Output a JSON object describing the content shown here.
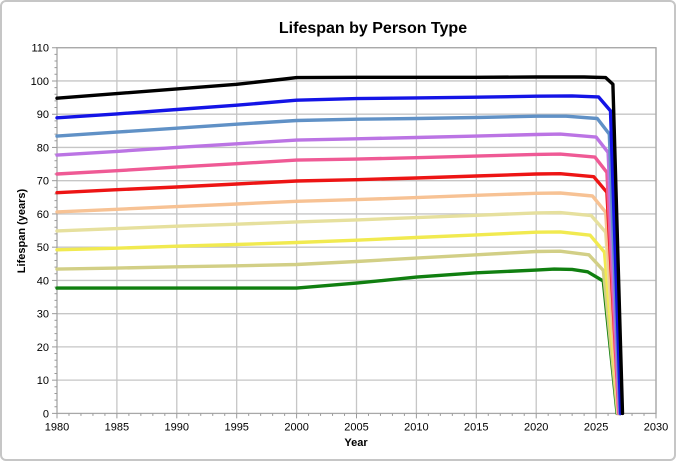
{
  "title": "Lifespan by Person Type",
  "chart_data": {
    "type": "line",
    "title": "Lifespan by Person Type",
    "xlabel": "Year",
    "ylabel": "Lifespan (years)",
    "xlim": [
      1980,
      2030
    ],
    "ylim": [
      0,
      110
    ],
    "x_tick_step": 5,
    "x_minor_tick_step": 1,
    "y_tick_step": 10,
    "y_minor_tick_step": 2,
    "x_tick_labels": [
      "1980",
      "1985",
      "1990",
      "1995",
      "2000",
      "2005",
      "2010",
      "2015",
      "2020",
      "2025",
      "2030"
    ],
    "y_tick_labels": [
      "0",
      "10",
      "20",
      "30",
      "40",
      "50",
      "60",
      "70",
      "80",
      "90",
      "100",
      "110"
    ],
    "grid": true,
    "legend_position": "none",
    "grid_color": "#c6c6c6",
    "axis_color": "#a8a8a8",
    "tick_color": "#9a9a9a",
    "line_width": 3.4,
    "series": [
      {
        "name": "black",
        "color": "#000000",
        "points": [
          [
            1980,
            94.8
          ],
          [
            1985,
            96.2
          ],
          [
            1990,
            97.6
          ],
          [
            1995,
            99.0
          ],
          [
            1999,
            100.6
          ],
          [
            2000,
            101.0
          ],
          [
            2005,
            101.1
          ],
          [
            2010,
            101.1
          ],
          [
            2015,
            101.1
          ],
          [
            2020,
            101.2
          ],
          [
            2024,
            101.2
          ],
          [
            2025.8,
            101.0
          ],
          [
            2026.4,
            99.0
          ],
          [
            2027.2,
            0
          ]
        ]
      },
      {
        "name": "blue",
        "color": "#1414e6",
        "points": [
          [
            1980,
            88.9
          ],
          [
            1985,
            90.1
          ],
          [
            1990,
            91.4
          ],
          [
            1995,
            92.7
          ],
          [
            2000,
            94.2
          ],
          [
            2005,
            94.7
          ],
          [
            2010,
            94.9
          ],
          [
            2015,
            95.1
          ],
          [
            2020,
            95.4
          ],
          [
            2023,
            95.5
          ],
          [
            2025.2,
            95.2
          ],
          [
            2026.2,
            91.0
          ],
          [
            2027.05,
            0
          ]
        ]
      },
      {
        "name": "steel-blue",
        "color": "#6091c6",
        "points": [
          [
            1980,
            83.4
          ],
          [
            1985,
            84.6
          ],
          [
            1990,
            85.8
          ],
          [
            1995,
            87.0
          ],
          [
            2000,
            88.1
          ],
          [
            2005,
            88.5
          ],
          [
            2010,
            88.7
          ],
          [
            2015,
            89.0
          ],
          [
            2020,
            89.4
          ],
          [
            2022.5,
            89.4
          ],
          [
            2025.1,
            88.7
          ],
          [
            2026.1,
            84.0
          ],
          [
            2027.0,
            0
          ]
        ]
      },
      {
        "name": "purple",
        "color": "#bb74e4",
        "points": [
          [
            1980,
            77.7
          ],
          [
            1985,
            78.8
          ],
          [
            1990,
            80.0
          ],
          [
            1995,
            81.1
          ],
          [
            2000,
            82.2
          ],
          [
            2005,
            82.6
          ],
          [
            2010,
            83.0
          ],
          [
            2015,
            83.4
          ],
          [
            2020,
            83.9
          ],
          [
            2022,
            84.0
          ],
          [
            2025.0,
            83.1
          ],
          [
            2026.0,
            78.5
          ],
          [
            2026.95,
            0
          ]
        ]
      },
      {
        "name": "pink",
        "color": "#ef5a95",
        "points": [
          [
            1980,
            72.0
          ],
          [
            1985,
            73.0
          ],
          [
            1990,
            74.1
          ],
          [
            1995,
            75.1
          ],
          [
            2000,
            76.2
          ],
          [
            2005,
            76.5
          ],
          [
            2010,
            76.9
          ],
          [
            2015,
            77.4
          ],
          [
            2020,
            77.9
          ],
          [
            2022,
            78.0
          ],
          [
            2024.9,
            77.1
          ],
          [
            2025.9,
            72.5
          ],
          [
            2026.9,
            0
          ]
        ]
      },
      {
        "name": "red",
        "color": "#ed1414",
        "points": [
          [
            1980,
            66.4
          ],
          [
            1985,
            67.3
          ],
          [
            1990,
            68.1
          ],
          [
            1995,
            69.0
          ],
          [
            2000,
            69.9
          ],
          [
            2005,
            70.3
          ],
          [
            2010,
            70.8
          ],
          [
            2015,
            71.4
          ],
          [
            2020,
            72.0
          ],
          [
            2022,
            72.1
          ],
          [
            2024.8,
            71.2
          ],
          [
            2025.9,
            66.5
          ],
          [
            2026.9,
            0
          ]
        ]
      },
      {
        "name": "peach",
        "color": "#f7c294",
        "points": [
          [
            1980,
            60.6
          ],
          [
            1985,
            61.4
          ],
          [
            1990,
            62.2
          ],
          [
            1995,
            63.0
          ],
          [
            2000,
            63.8
          ],
          [
            2005,
            64.3
          ],
          [
            2010,
            64.9
          ],
          [
            2015,
            65.6
          ],
          [
            2020,
            66.2
          ],
          [
            2022,
            66.3
          ],
          [
            2024.7,
            65.4
          ],
          [
            2025.8,
            60.5
          ],
          [
            2026.85,
            0
          ]
        ]
      },
      {
        "name": "pale-tan",
        "color": "#e6e09e",
        "points": [
          [
            1980,
            54.9
          ],
          [
            1985,
            55.6
          ],
          [
            1990,
            56.3
          ],
          [
            1995,
            56.9
          ],
          [
            2000,
            57.6
          ],
          [
            2005,
            58.2
          ],
          [
            2010,
            58.9
          ],
          [
            2015,
            59.6
          ],
          [
            2020,
            60.3
          ],
          [
            2022,
            60.4
          ],
          [
            2024.6,
            59.5
          ],
          [
            2025.8,
            54.5
          ],
          [
            2026.85,
            0
          ]
        ]
      },
      {
        "name": "yellow",
        "color": "#f1ea50",
        "points": [
          [
            1980,
            49.2
          ],
          [
            1985,
            49.7
          ],
          [
            1990,
            50.3
          ],
          [
            1995,
            50.8
          ],
          [
            2000,
            51.4
          ],
          [
            2005,
            52.1
          ],
          [
            2010,
            52.9
          ],
          [
            2015,
            53.7
          ],
          [
            2020,
            54.5
          ],
          [
            2022,
            54.6
          ],
          [
            2024.5,
            53.6
          ],
          [
            2025.7,
            48.5
          ],
          [
            2026.85,
            0
          ]
        ]
      },
      {
        "name": "dark-khaki",
        "color": "#d2cf86",
        "points": [
          [
            1980,
            43.4
          ],
          [
            1985,
            43.7
          ],
          [
            1990,
            44.1
          ],
          [
            1995,
            44.4
          ],
          [
            2000,
            44.8
          ],
          [
            2005,
            45.7
          ],
          [
            2010,
            46.7
          ],
          [
            2015,
            47.7
          ],
          [
            2020,
            48.7
          ],
          [
            2022,
            48.8
          ],
          [
            2024.4,
            47.7
          ],
          [
            2025.6,
            43.0
          ],
          [
            2026.8,
            0
          ]
        ]
      },
      {
        "name": "green",
        "color": "#107f10",
        "points": [
          [
            1980,
            37.7
          ],
          [
            1985,
            37.7
          ],
          [
            1990,
            37.7
          ],
          [
            1995,
            37.7
          ],
          [
            2000,
            37.7
          ],
          [
            2005,
            39.2
          ],
          [
            2010,
            41.0
          ],
          [
            2015,
            42.3
          ],
          [
            2020,
            43.1
          ],
          [
            2021.5,
            43.4
          ],
          [
            2023,
            43.3
          ],
          [
            2024.3,
            42.6
          ],
          [
            2025.6,
            39.8
          ],
          [
            2026.75,
            0
          ]
        ]
      }
    ]
  }
}
